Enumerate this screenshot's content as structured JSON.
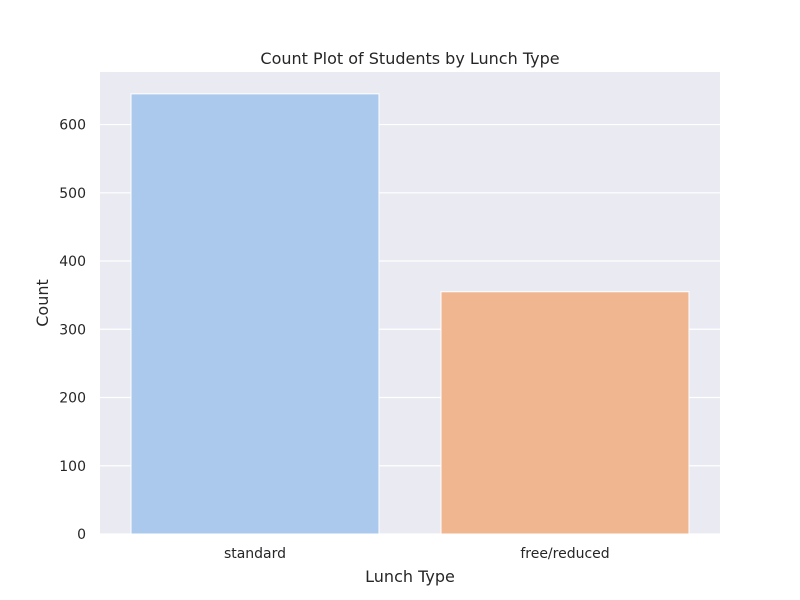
{
  "chart_data": {
    "type": "bar",
    "title": "Count Plot of Students by Lunch Type",
    "xlabel": "Lunch Type",
    "ylabel": "Count",
    "categories": [
      "standard",
      "free/reduced"
    ],
    "values": [
      645,
      355
    ],
    "colors": [
      "#abc9ed",
      "#f0b690"
    ],
    "ylim": [
      0,
      677
    ],
    "yticks": [
      0,
      100,
      200,
      300,
      400,
      500,
      600
    ],
    "grid": true,
    "background": "#eaeaf2",
    "grid_color": "#ffffff"
  }
}
